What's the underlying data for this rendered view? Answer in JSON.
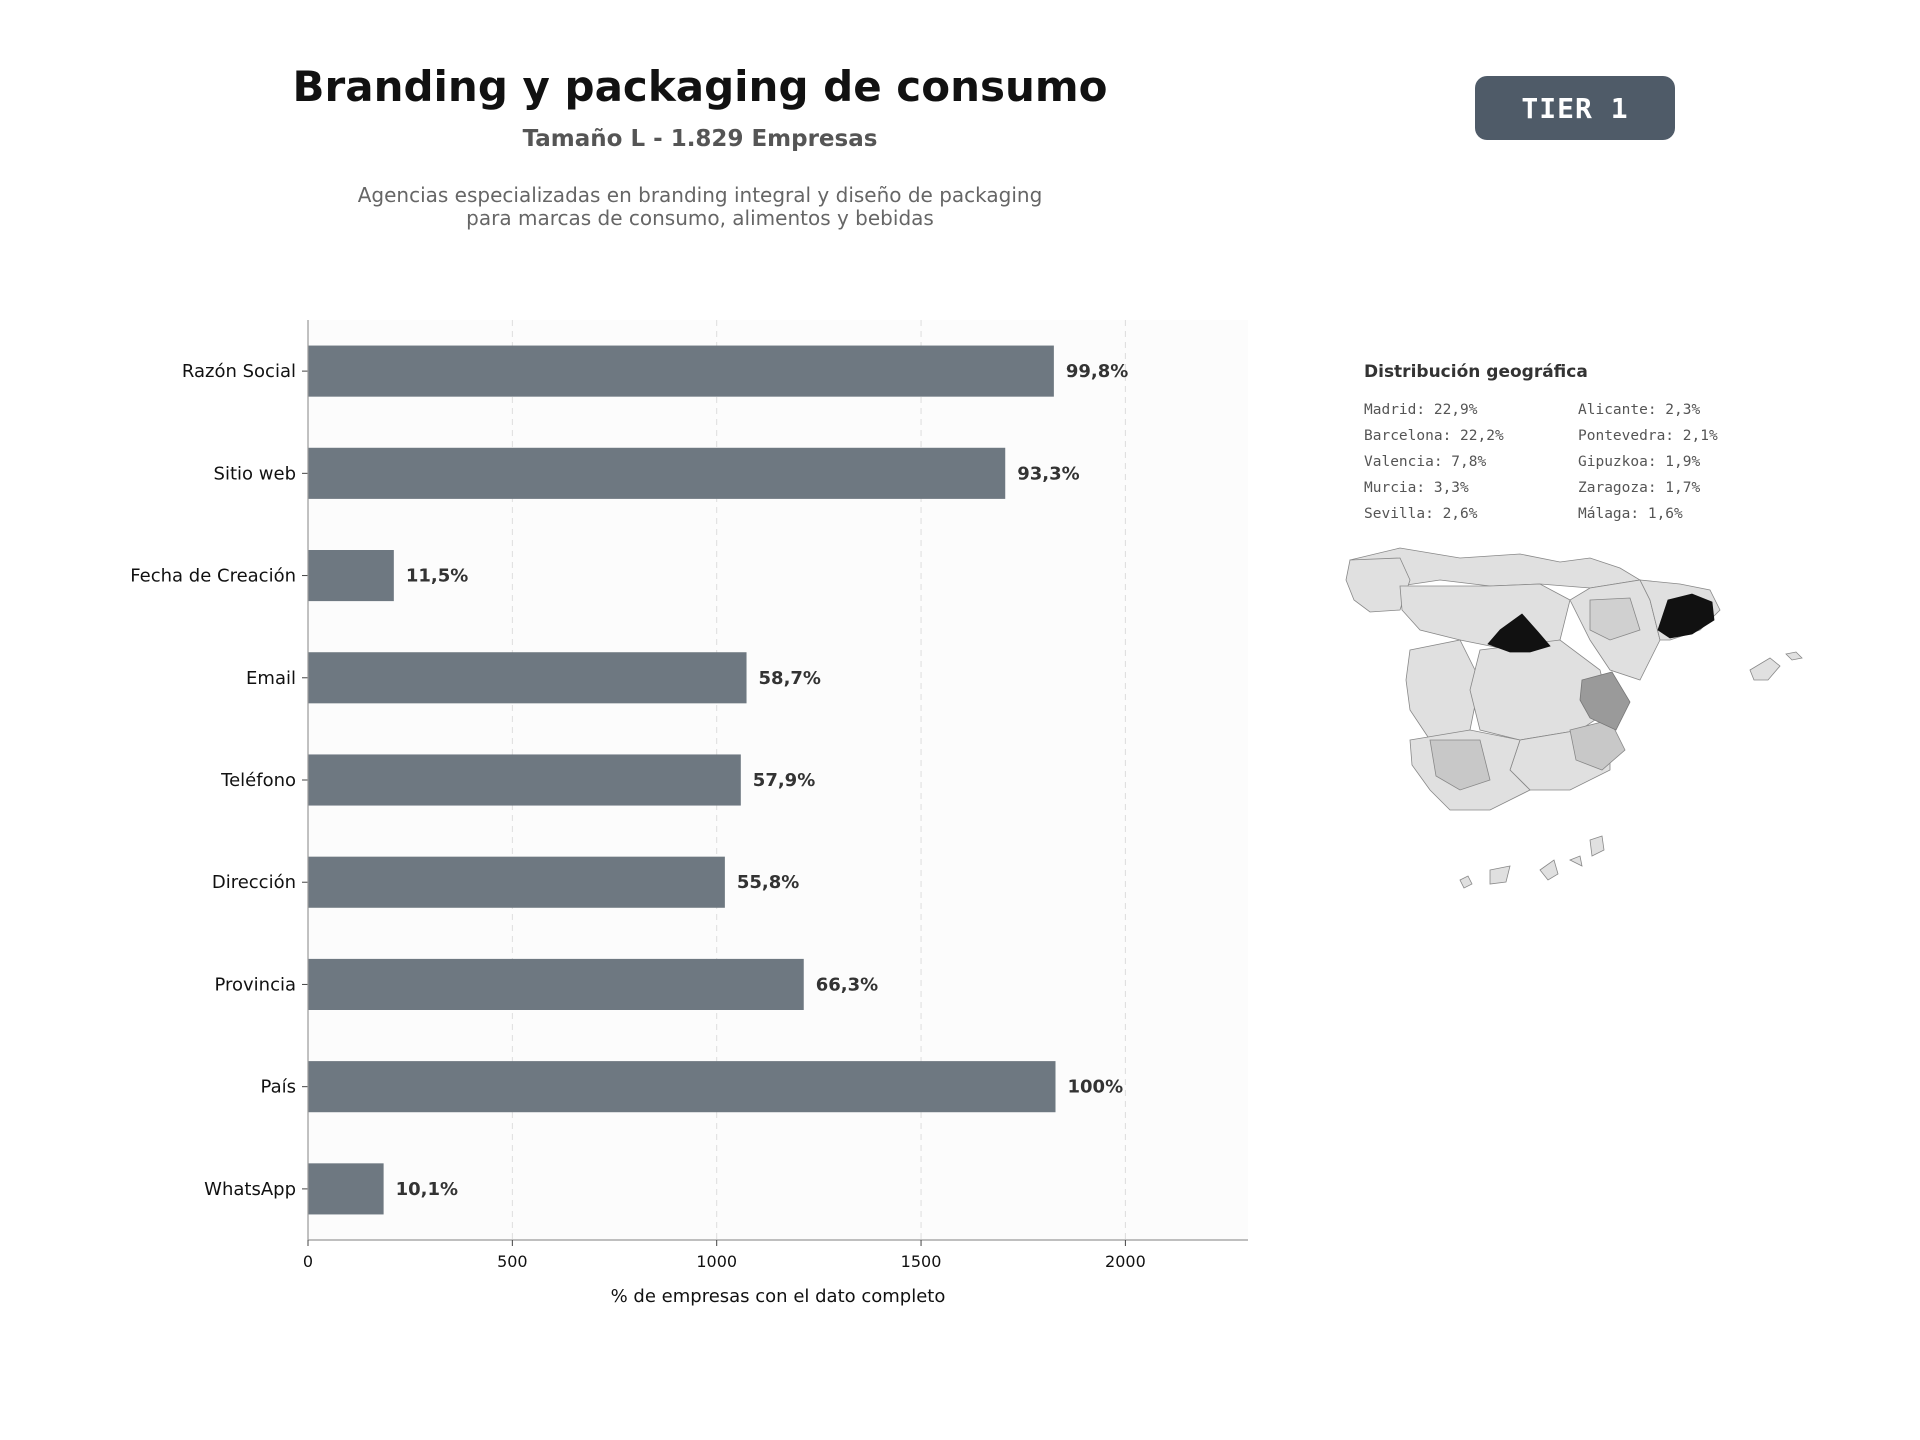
{
  "header": {
    "title": "Branding y packaging de consumo",
    "subtitle": "Tamaño L - 1.829 Empresas",
    "description_line1": "Agencias especializadas en branding integral y diseño de packaging",
    "description_line2": "para marcas de consumo, alimentos y bebidas",
    "tier": "TIER 1"
  },
  "chart_data": {
    "type": "bar",
    "orientation": "horizontal",
    "xlabel": "% de empresas con el dato completo",
    "xlim": [
      0,
      2300
    ],
    "xticks": [
      0,
      500,
      1000,
      1500,
      2000
    ],
    "grid": "vertical dashed",
    "bar_color": "#6e7881",
    "categories": [
      "Razón Social",
      "Sitio web",
      "Fecha de Creación",
      "Email",
      "Teléfono",
      "Dirección",
      "Provincia",
      "País",
      "WhatsApp"
    ],
    "values": [
      1825,
      1706,
      210,
      1073,
      1059,
      1020,
      1213,
      1829,
      185
    ],
    "labels": [
      "99,8%",
      "93,3%",
      "11,5%",
      "58,7%",
      "57,9%",
      "55,8%",
      "66,3%",
      "100%",
      "10,1%"
    ]
  },
  "geo": {
    "title": "Distribución geográfica",
    "items": [
      "Madrid: 22,9%",
      "Alicante: 2,3%",
      "Barcelona: 22,2%",
      "Pontevedra: 2,1%",
      "Valencia: 7,8%",
      "Gipuzkoa: 1,9%",
      "Murcia: 3,3%",
      "Zaragoza: 1,7%",
      "Sevilla: 2,6%",
      "Málaga: 1,6%"
    ],
    "colors": {
      "highest": "#111111",
      "mid": "#9a9a9a",
      "low": "#c8c8c8",
      "base": "#e0e0e0",
      "border": "#888888"
    }
  }
}
